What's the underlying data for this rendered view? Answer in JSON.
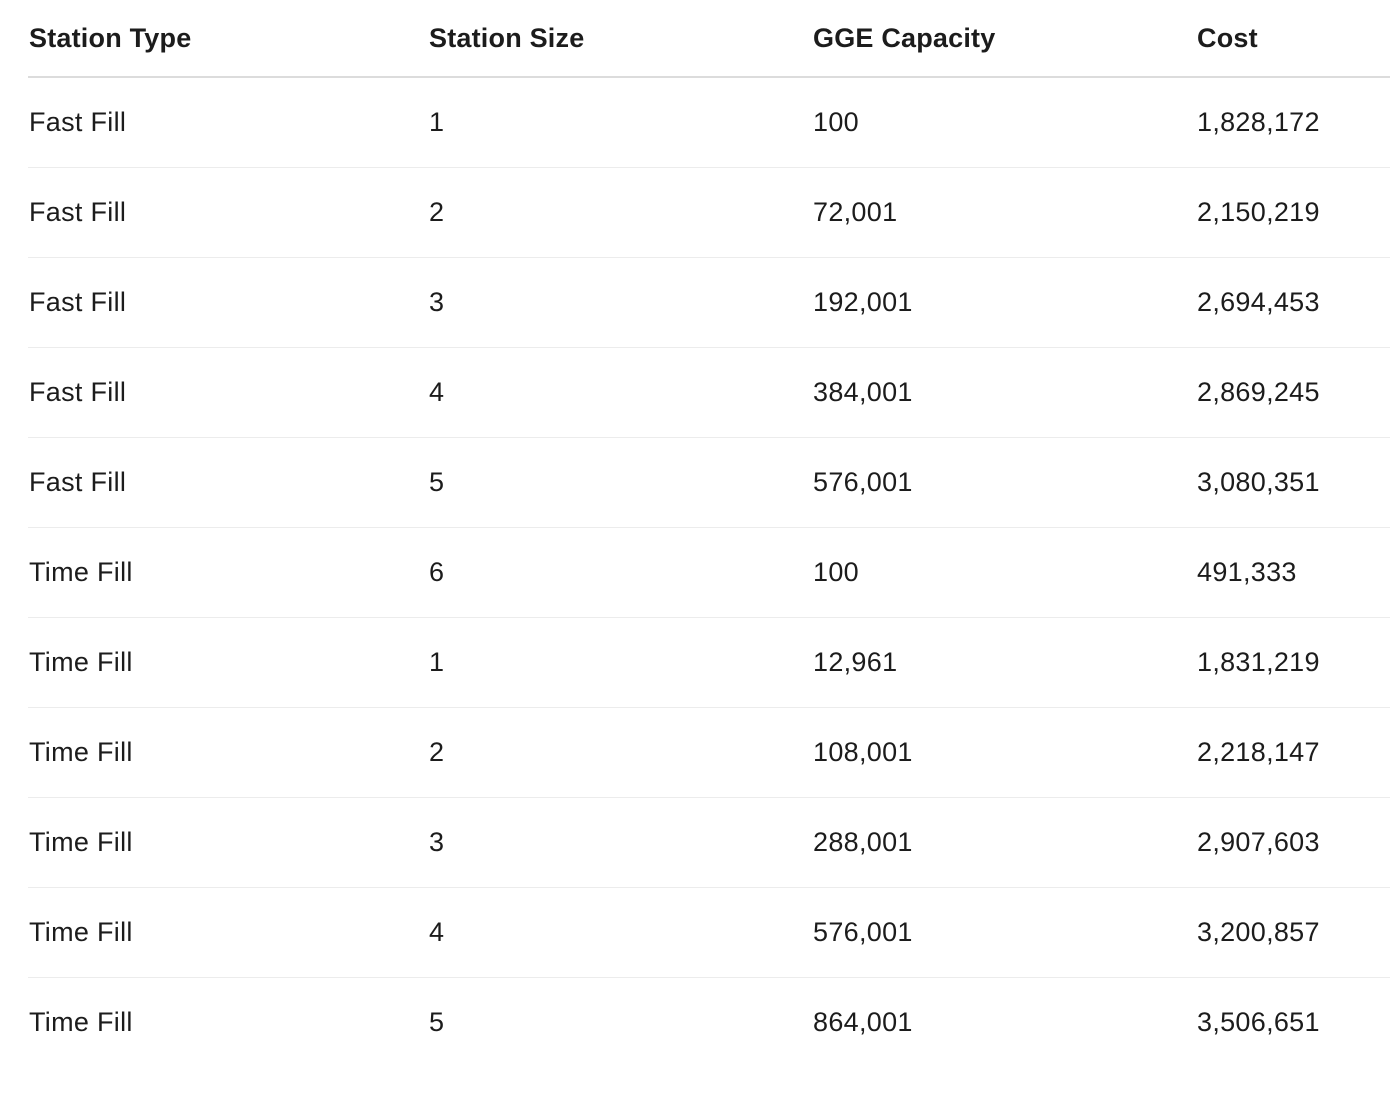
{
  "table": {
    "headers": [
      "Station Type",
      "Station Size",
      "GGE Capacity",
      "Cost"
    ],
    "rows": [
      [
        "Fast Fill",
        "1",
        "100",
        "1,828,172"
      ],
      [
        "Fast Fill",
        "2",
        "72,001",
        "2,150,219"
      ],
      [
        "Fast Fill",
        "3",
        "192,001",
        "2,694,453"
      ],
      [
        "Fast Fill",
        "4",
        "384,001",
        "2,869,245"
      ],
      [
        "Fast Fill",
        "5",
        "576,001",
        "3,080,351"
      ],
      [
        "Time Fill",
        "6",
        "100",
        "491,333"
      ],
      [
        "Time Fill",
        "1",
        "12,961",
        "1,831,219"
      ],
      [
        "Time Fill",
        "2",
        "108,001",
        "2,218,147"
      ],
      [
        "Time Fill",
        "3",
        "288,001",
        "2,907,603"
      ],
      [
        "Time Fill",
        "4",
        "576,001",
        "3,200,857"
      ],
      [
        "Time Fill",
        "5",
        "864,001",
        "3,506,651"
      ]
    ]
  }
}
